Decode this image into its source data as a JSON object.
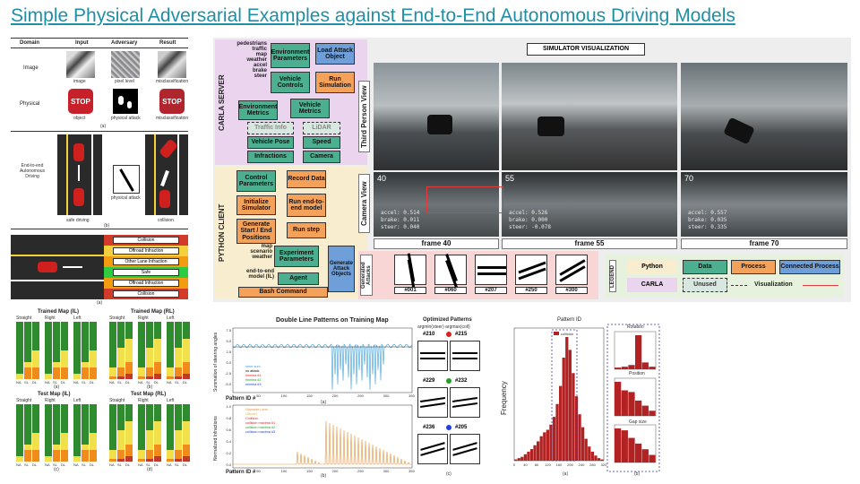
{
  "title": "Simple Physical Adversarial Examples against End-to-End Autonomous Driving Models",
  "fig_left": {
    "headers": [
      "Domain",
      "Input",
      "Adversary",
      "Result"
    ],
    "rows": [
      {
        "domain": "Image",
        "input": "image",
        "adversary": "pixel level",
        "result": "misclassification"
      },
      {
        "domain": "Physical",
        "input": "object",
        "adversary": "physical attack",
        "result": "misclassification"
      }
    ],
    "panel_a": "(a)",
    "e2e_label": "End-to-end Autonomous Driving",
    "safe_label": "safe driving",
    "phys_label": "physical attack",
    "collision_label": "collision",
    "panel_b": "(b)",
    "stop_text": "STOP"
  },
  "lane_fig": {
    "labels": [
      "Collision",
      "Offroad Infraction",
      "Other Lane Infraction",
      "Safe",
      "Offroad Infraction",
      "Collision"
    ],
    "panel": "(a)",
    "colors": [
      "#d23a2a",
      "#f4d03f",
      "#f39c12",
      "#2ecc40",
      "#f39c12",
      "#d23a2a"
    ]
  },
  "diagram": {
    "carla_server": "CARLA SERVER",
    "python_client": "PYTHON CLIENT",
    "params": [
      "pedestrians",
      "traffic",
      "map",
      "weather",
      "accel",
      "brake",
      "steer"
    ],
    "env_params": "Environment Parameters",
    "load_attack": "Load Attack Object",
    "vehicle_controls": "Vehicle Controls",
    "run_sim": "Run Simulation",
    "env_metrics": "Environment Metrics",
    "vehicle_metrics": "Vehicle Metrics",
    "traffic_info": "Traffic Info",
    "lidar": "LiDAR",
    "vehicle_pose": "Vehicle Pose",
    "speed": "Speed",
    "infractions": "Infractions",
    "camera": "Camera",
    "control_params": "Control Parameters",
    "record_data": "Record Data",
    "init_sim": "Initialize Simulator",
    "run_e2e": "Run end-to-end model",
    "gen_positions": "Generate Start / End Positions",
    "run_step": "Run step",
    "client_params": [
      "map",
      "scenario",
      "weather"
    ],
    "exp_params": "Experiment Parameters",
    "e2e_model": "end-to-end model (IL)",
    "agent": "Agent",
    "bash": "Bash Command",
    "gen_attack": "Generate Attack Objects",
    "sim_vis": "SIMULATOR VISUALIZATION",
    "third_person": "Third Person View",
    "camera_view": "Camera View",
    "frames": [
      "frame 40",
      "frame 55",
      "frame 70"
    ],
    "frame_nums": [
      "40",
      "55",
      "70"
    ],
    "readouts": [
      [
        "accel: 0.514",
        "brake: 0.011",
        "steer: 0.040"
      ],
      [
        "accel: 0.526",
        "brake: 0.000",
        "steer: -0.078"
      ],
      [
        "accel: 0.557",
        "brake: 0.035",
        "steer: 0.335"
      ]
    ],
    "generated_attacks": "Generated Attacks",
    "attack_ids": [
      "#001",
      "#060",
      "#207",
      "#250",
      "#300"
    ],
    "legend_title": "LEGEND",
    "legend": {
      "python": "Python",
      "carla": "CARLA",
      "data": "Data",
      "process": "Process",
      "connected": "Connected Process",
      "unused": "Unused",
      "visualization": "Visualization"
    }
  },
  "bar_maps": {
    "titles": [
      "Trained Map (IL)",
      "Trained Map (RL)",
      "Test Map (IL)",
      "Test Map (RL)"
    ],
    "subs": [
      "Straight",
      "Right",
      "Left"
    ],
    "x_ticks": [
      "NA",
      "SL",
      "DL"
    ],
    "panels": [
      "(a)",
      "(b)",
      "(c)",
      "(d)"
    ]
  },
  "line_fig": {
    "title": "Double Line Patterns on Training Map",
    "ylabel1": "Summation of steering angles",
    "ylabel2": "Normalized Infractions",
    "xlabel": "Pattern ID #",
    "legend1": [
      "steer sum",
      "no attack",
      "minima #1",
      "minima #2",
      "minima #3"
    ],
    "legend2": [
      "Opposite Lane",
      "Offroad",
      "Collision",
      "collision maxima #1",
      "collision maxima #2",
      "collision maxima #3"
    ],
    "yticks1": [
      "7.5",
      "5.0",
      "2.5",
      "0.0",
      "-2.5",
      "-5.0"
    ],
    "yticks2": [
      "1.0",
      "0.8",
      "0.6",
      "0.4",
      "0.2",
      "0.0"
    ],
    "xticks": [
      "0",
      "50",
      "100",
      "150",
      "200",
      "250",
      "300",
      "350"
    ],
    "panel_a": "(a)",
    "panel_b": "(b)"
  },
  "optimized": {
    "title": "Optimized Patterns",
    "sub": "argmin(steer) argmax(coll)",
    "ids": [
      [
        "#210",
        "#215"
      ],
      [
        "#229",
        "#232"
      ],
      [
        "#236",
        "#205"
      ]
    ],
    "dot_colors": [
      "#e02020",
      "#20a020",
      "#2040e0"
    ],
    "panel": "(c)"
  },
  "hist": {
    "title": "Pattern ID",
    "legend": "collision",
    "ylabel": "Frequency",
    "xticks": [
      "0",
      "40",
      "80",
      "120",
      "160",
      "200",
      "240",
      "280",
      "320"
    ],
    "panel_a": "(a)",
    "panel_b": "(b)",
    "rotation": "Rotation",
    "position": "Position",
    "gap": "Gap size",
    "chart_data": {
      "type": "bar",
      "values": [
        1,
        2,
        3,
        5,
        7,
        9,
        12,
        15,
        19,
        22,
        24,
        28,
        34,
        44,
        58,
        80,
        96,
        86,
        68,
        50,
        36,
        26,
        17,
        11,
        7,
        4,
        2,
        1
      ],
      "color": "#b22222"
    }
  }
}
